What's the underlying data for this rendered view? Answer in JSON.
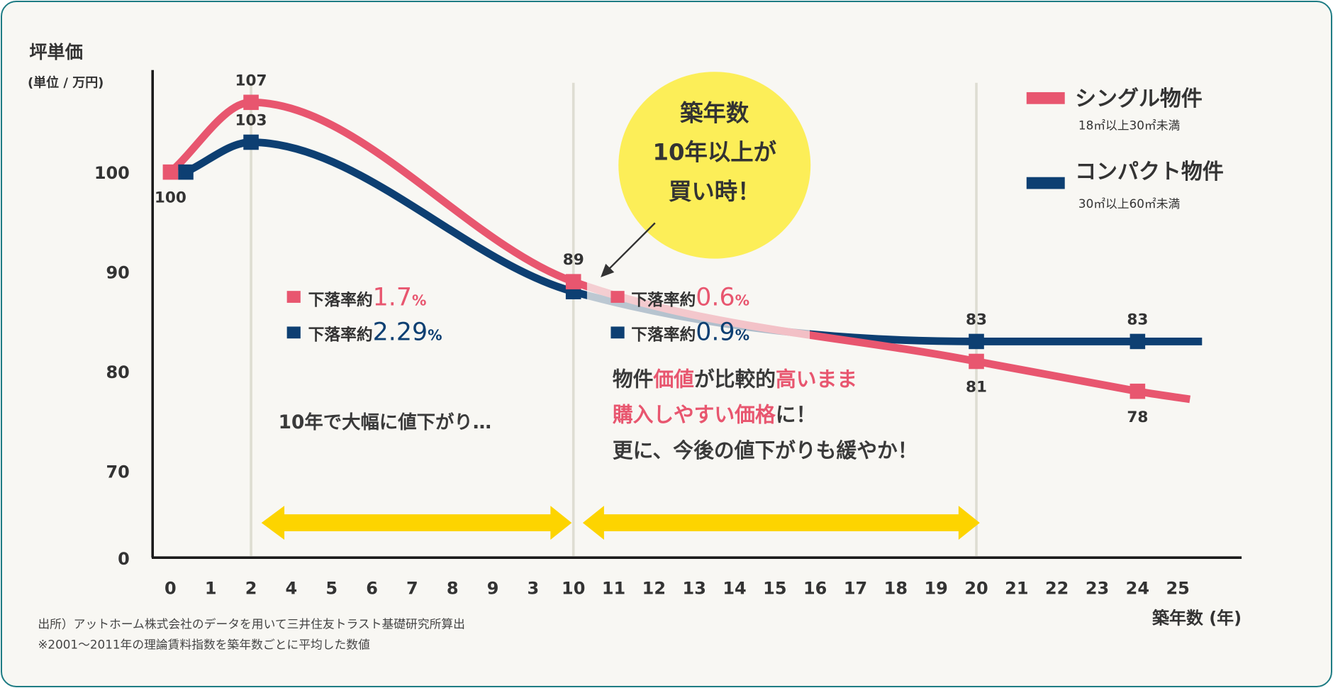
{
  "chart_data": {
    "type": "line",
    "ylabel": "坪単価",
    "ylabel_unit": "(単位 / 万円)",
    "xlabel": "築年数 (年)",
    "y_ticks": [
      "100",
      "90",
      "80",
      "70",
      "0"
    ],
    "y_tick_values": [
      100,
      90,
      80,
      70,
      0
    ],
    "x_tick_labels": [
      "0",
      "1",
      "2",
      "4",
      "5",
      "6",
      "7",
      "8",
      "9",
      "3",
      "10",
      "11",
      "12",
      "13",
      "14",
      "15",
      "16",
      "17",
      "18",
      "19",
      "20",
      "21",
      "22",
      "23",
      "24",
      "25"
    ],
    "grid": "vertical lines at 2, 10, 20",
    "legend_placement": "top-right",
    "series": [
      {
        "name": "シングル物件",
        "sub": "18㎡以上30㎡未満",
        "color": "#e8566f",
        "x": [
          0,
          2,
          10,
          20,
          24
        ],
        "values": [
          100,
          107,
          89,
          81,
          78
        ],
        "labels": [
          "100",
          "107",
          "89",
          "81",
          "78"
        ]
      },
      {
        "name": "コンパクト物件",
        "sub": "30㎡以上60㎡未満",
        "color": "#0d3f72",
        "x": [
          0,
          2,
          10,
          20,
          24
        ],
        "values": [
          100,
          103,
          88,
          83,
          83
        ],
        "labels": [
          "",
          "103",
          "",
          "83",
          "83"
        ]
      }
    ],
    "annotations": {
      "bubble": [
        "築年数",
        "10年以上が",
        "買い時！"
      ],
      "rate_left": {
        "prefix": "下落率約",
        "single": "1.7",
        "compact": "2.29",
        "unit": "%"
      },
      "rate_right": {
        "prefix": "下落率約",
        "single": "0.6",
        "compact": "0.9",
        "unit": "%"
      },
      "left_note": "10年で大幅に値下がり…",
      "right_note": {
        "line1": [
          {
            "t": "物件",
            "hl": false
          },
          {
            "t": "価値",
            "hl": true
          },
          {
            "t": "が比較的",
            "hl": false
          },
          {
            "t": "高いまま",
            "hl": true
          }
        ],
        "line2": [
          {
            "t": "購入しやすい価格",
            "hl": true
          },
          {
            "t": "に！",
            "hl": false
          }
        ],
        "line3": [
          {
            "t": "更に、今後の値下がりも緩やか！",
            "hl": false
          }
        ]
      }
    },
    "colors": {
      "single": "#e8566f",
      "compact": "#0d3f72",
      "arrow": "#fdd400",
      "bubble": "#fcee58",
      "text": "#3a3a3a",
      "border": "#1d7b83"
    }
  },
  "footnotes": [
    "出所）アットホーム株式会社のデータを用いて三井住友トラスト基礎研究所算出",
    "※2001～2011年の理論賃料指数を築年数ごとに平均した数値"
  ]
}
